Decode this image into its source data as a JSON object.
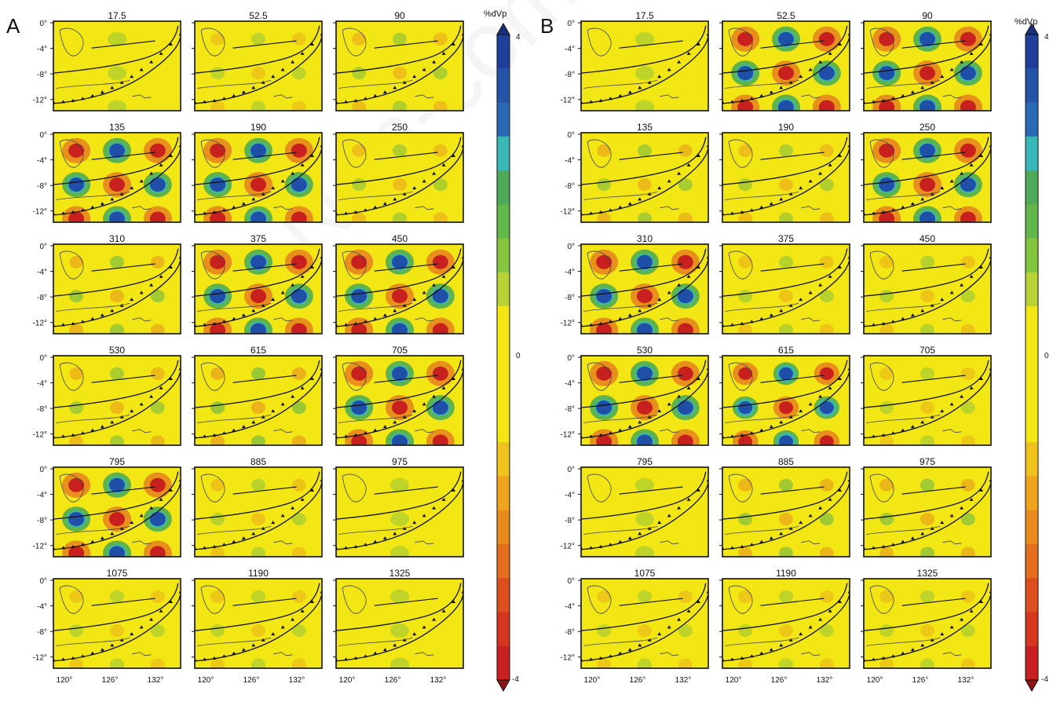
{
  "figure": {
    "panel_a_label": "A",
    "panel_b_label": "B",
    "colorbar_unit": "%dVp",
    "colorbar_max": "4",
    "colorbar_mid": "0",
    "colorbar_min": "-4",
    "lat_ticks": [
      "0°",
      "-4°",
      "-8°",
      "-12°"
    ],
    "lon_ticks": [
      "120°",
      "126°",
      "132°"
    ],
    "watermark": "Non-commercial use only"
  },
  "panel_a": {
    "depths": [
      "17.5",
      "52.5",
      "90",
      "135",
      "190",
      "250",
      "310",
      "375",
      "450",
      "530",
      "615",
      "705",
      "795",
      "885",
      "975",
      "1075",
      "1190",
      "1325"
    ],
    "checker_strength": [
      0.05,
      0.15,
      0.25,
      1.0,
      1.0,
      0.25,
      0.35,
      1.0,
      1.0,
      0.3,
      0.4,
      1.0,
      1.0,
      0.2,
      0.1,
      0.15,
      0.15,
      0.05
    ]
  },
  "panel_b": {
    "depths": [
      "17.5",
      "52.5",
      "90",
      "135",
      "190",
      "250",
      "310",
      "375",
      "450",
      "530",
      "615",
      "705",
      "795",
      "885",
      "975",
      "1075",
      "1190",
      "1325"
    ],
    "checker_strength": [
      0.05,
      1.0,
      1.0,
      0.3,
      0.25,
      1.0,
      1.0,
      0.2,
      0.2,
      1.0,
      0.9,
      0.15,
      0.1,
      0.35,
      0.35,
      0.15,
      0.15,
      0.15
    ]
  },
  "colors": {
    "background": "#f2e614",
    "red": "#c8201e",
    "orange": "#e8901c",
    "green": "#5fb34c",
    "teal": "#39b7b7",
    "blue": "#1f4fa8",
    "frame": "#111111"
  }
}
